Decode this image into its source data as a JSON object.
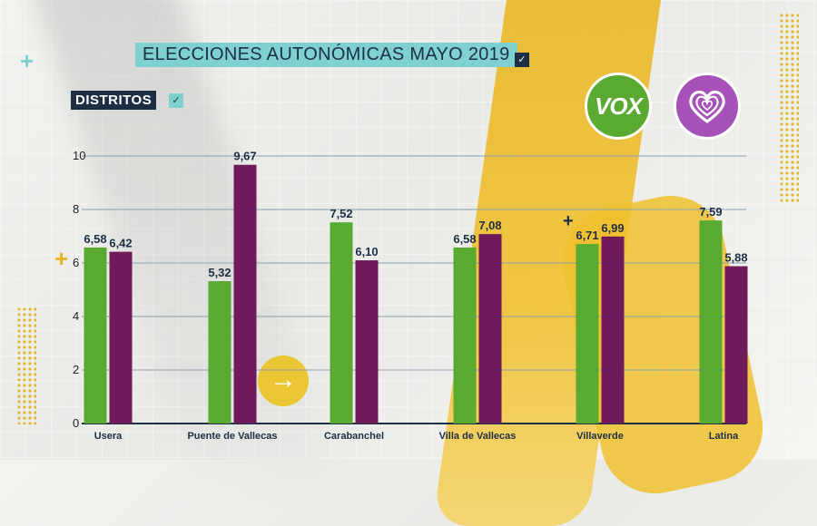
{
  "header": {
    "title": "ELECCIONES AUTONÓMICAS MAYO 2019",
    "subtitle": "DISTRITOS"
  },
  "logos": {
    "party1": "VOX",
    "party1_icon": "vox-logo-icon",
    "party2_icon": "heart-logo-icon"
  },
  "colors": {
    "vox": "#5aaa31",
    "mas_madrid": "#6e1a5b",
    "accent_teal": "#7fd1cf",
    "navy": "#1d2f44",
    "yellow": "#ecc534"
  },
  "chart_data": {
    "type": "bar",
    "categories": [
      "Usera",
      "Puente de Vallecas",
      "Carabanchel",
      "Villa de Vallecas",
      "Villaverde",
      "Latina"
    ],
    "series": [
      {
        "color": "#5aaa31",
        "values": [
          6.58,
          5.32,
          7.52,
          6.58,
          6.71,
          7.59
        ],
        "labels": [
          "6,58",
          "5,32",
          "7,52",
          "6,58",
          "6,71",
          "7,59"
        ]
      },
      {
        "color": "#6e1a5b",
        "values": [
          6.42,
          9.67,
          6.1,
          7.08,
          6.99,
          5.88
        ],
        "labels": [
          "6,42",
          "9,67",
          "6,10",
          "7,08",
          "6,99",
          "5,88"
        ]
      }
    ],
    "yticks": [
      0,
      2,
      4,
      6,
      8,
      10
    ],
    "ylim": [
      0,
      10
    ],
    "grid": true
  }
}
